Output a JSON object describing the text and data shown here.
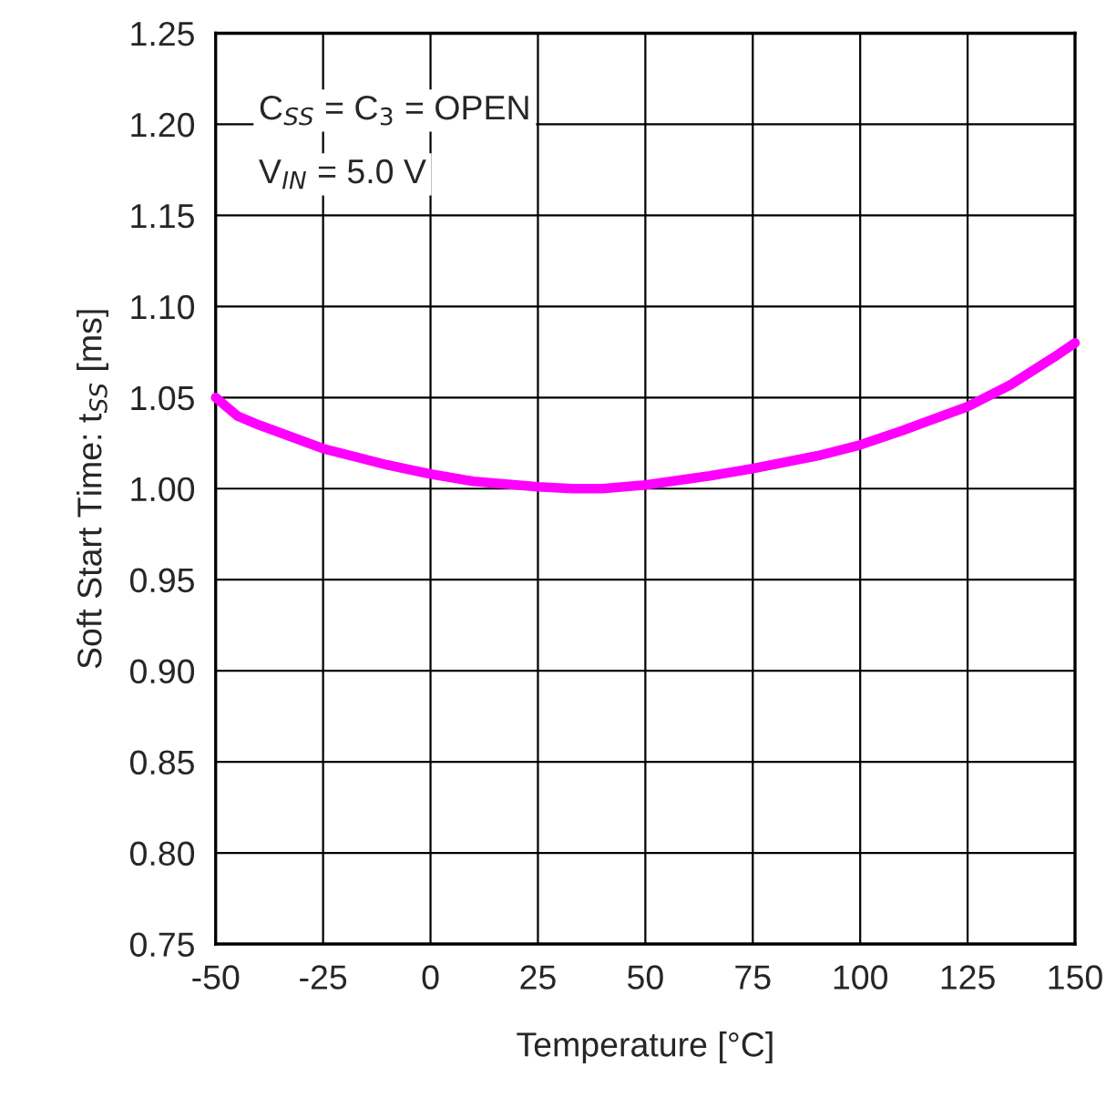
{
  "chart_data": {
    "type": "line",
    "xlabel": "Temperature [°C]",
    "ylabel": "Soft Start Time: t$_{SS}$ [ms]",
    "annotations": [
      "C$_{SS}$ = C$_{3}$ = OPEN",
      "V$_{IN}$ = 5.0 V"
    ],
    "series": [
      {
        "color": "#ff00ff",
        "x": [
          -50,
          -45,
          -40,
          -25,
          -10,
          0,
          10,
          25,
          33,
          40,
          50,
          65,
          75,
          90,
          100,
          110,
          125,
          135,
          145,
          150
        ],
        "values": [
          1.05,
          1.04,
          1.035,
          1.022,
          1.013,
          1.008,
          1.004,
          1.001,
          1.0,
          1.0,
          1.002,
          1.007,
          1.011,
          1.018,
          1.024,
          1.032,
          1.045,
          1.057,
          1.072,
          1.08
        ]
      }
    ],
    "xlim": [
      -50,
      150
    ],
    "xticks": [
      -50,
      -25,
      0,
      25,
      50,
      75,
      100,
      125,
      150
    ],
    "ylim": [
      0.75,
      1.25
    ],
    "yticks": [
      0.75,
      {
        "value": 0.8,
        "label": "0.80"
      },
      0.85,
      {
        "value": 0.9,
        "label": "0.90"
      },
      0.95,
      {
        "value": 1.0,
        "label": "1.00"
      },
      1.05,
      {
        "value": 1.1,
        "label": "1.10"
      },
      1.15,
      {
        "value": 1.2,
        "label": "1.20"
      },
      1.25
    ],
    "grid": true,
    "marker": "none",
    "line_style": "solid",
    "legend": false
  }
}
